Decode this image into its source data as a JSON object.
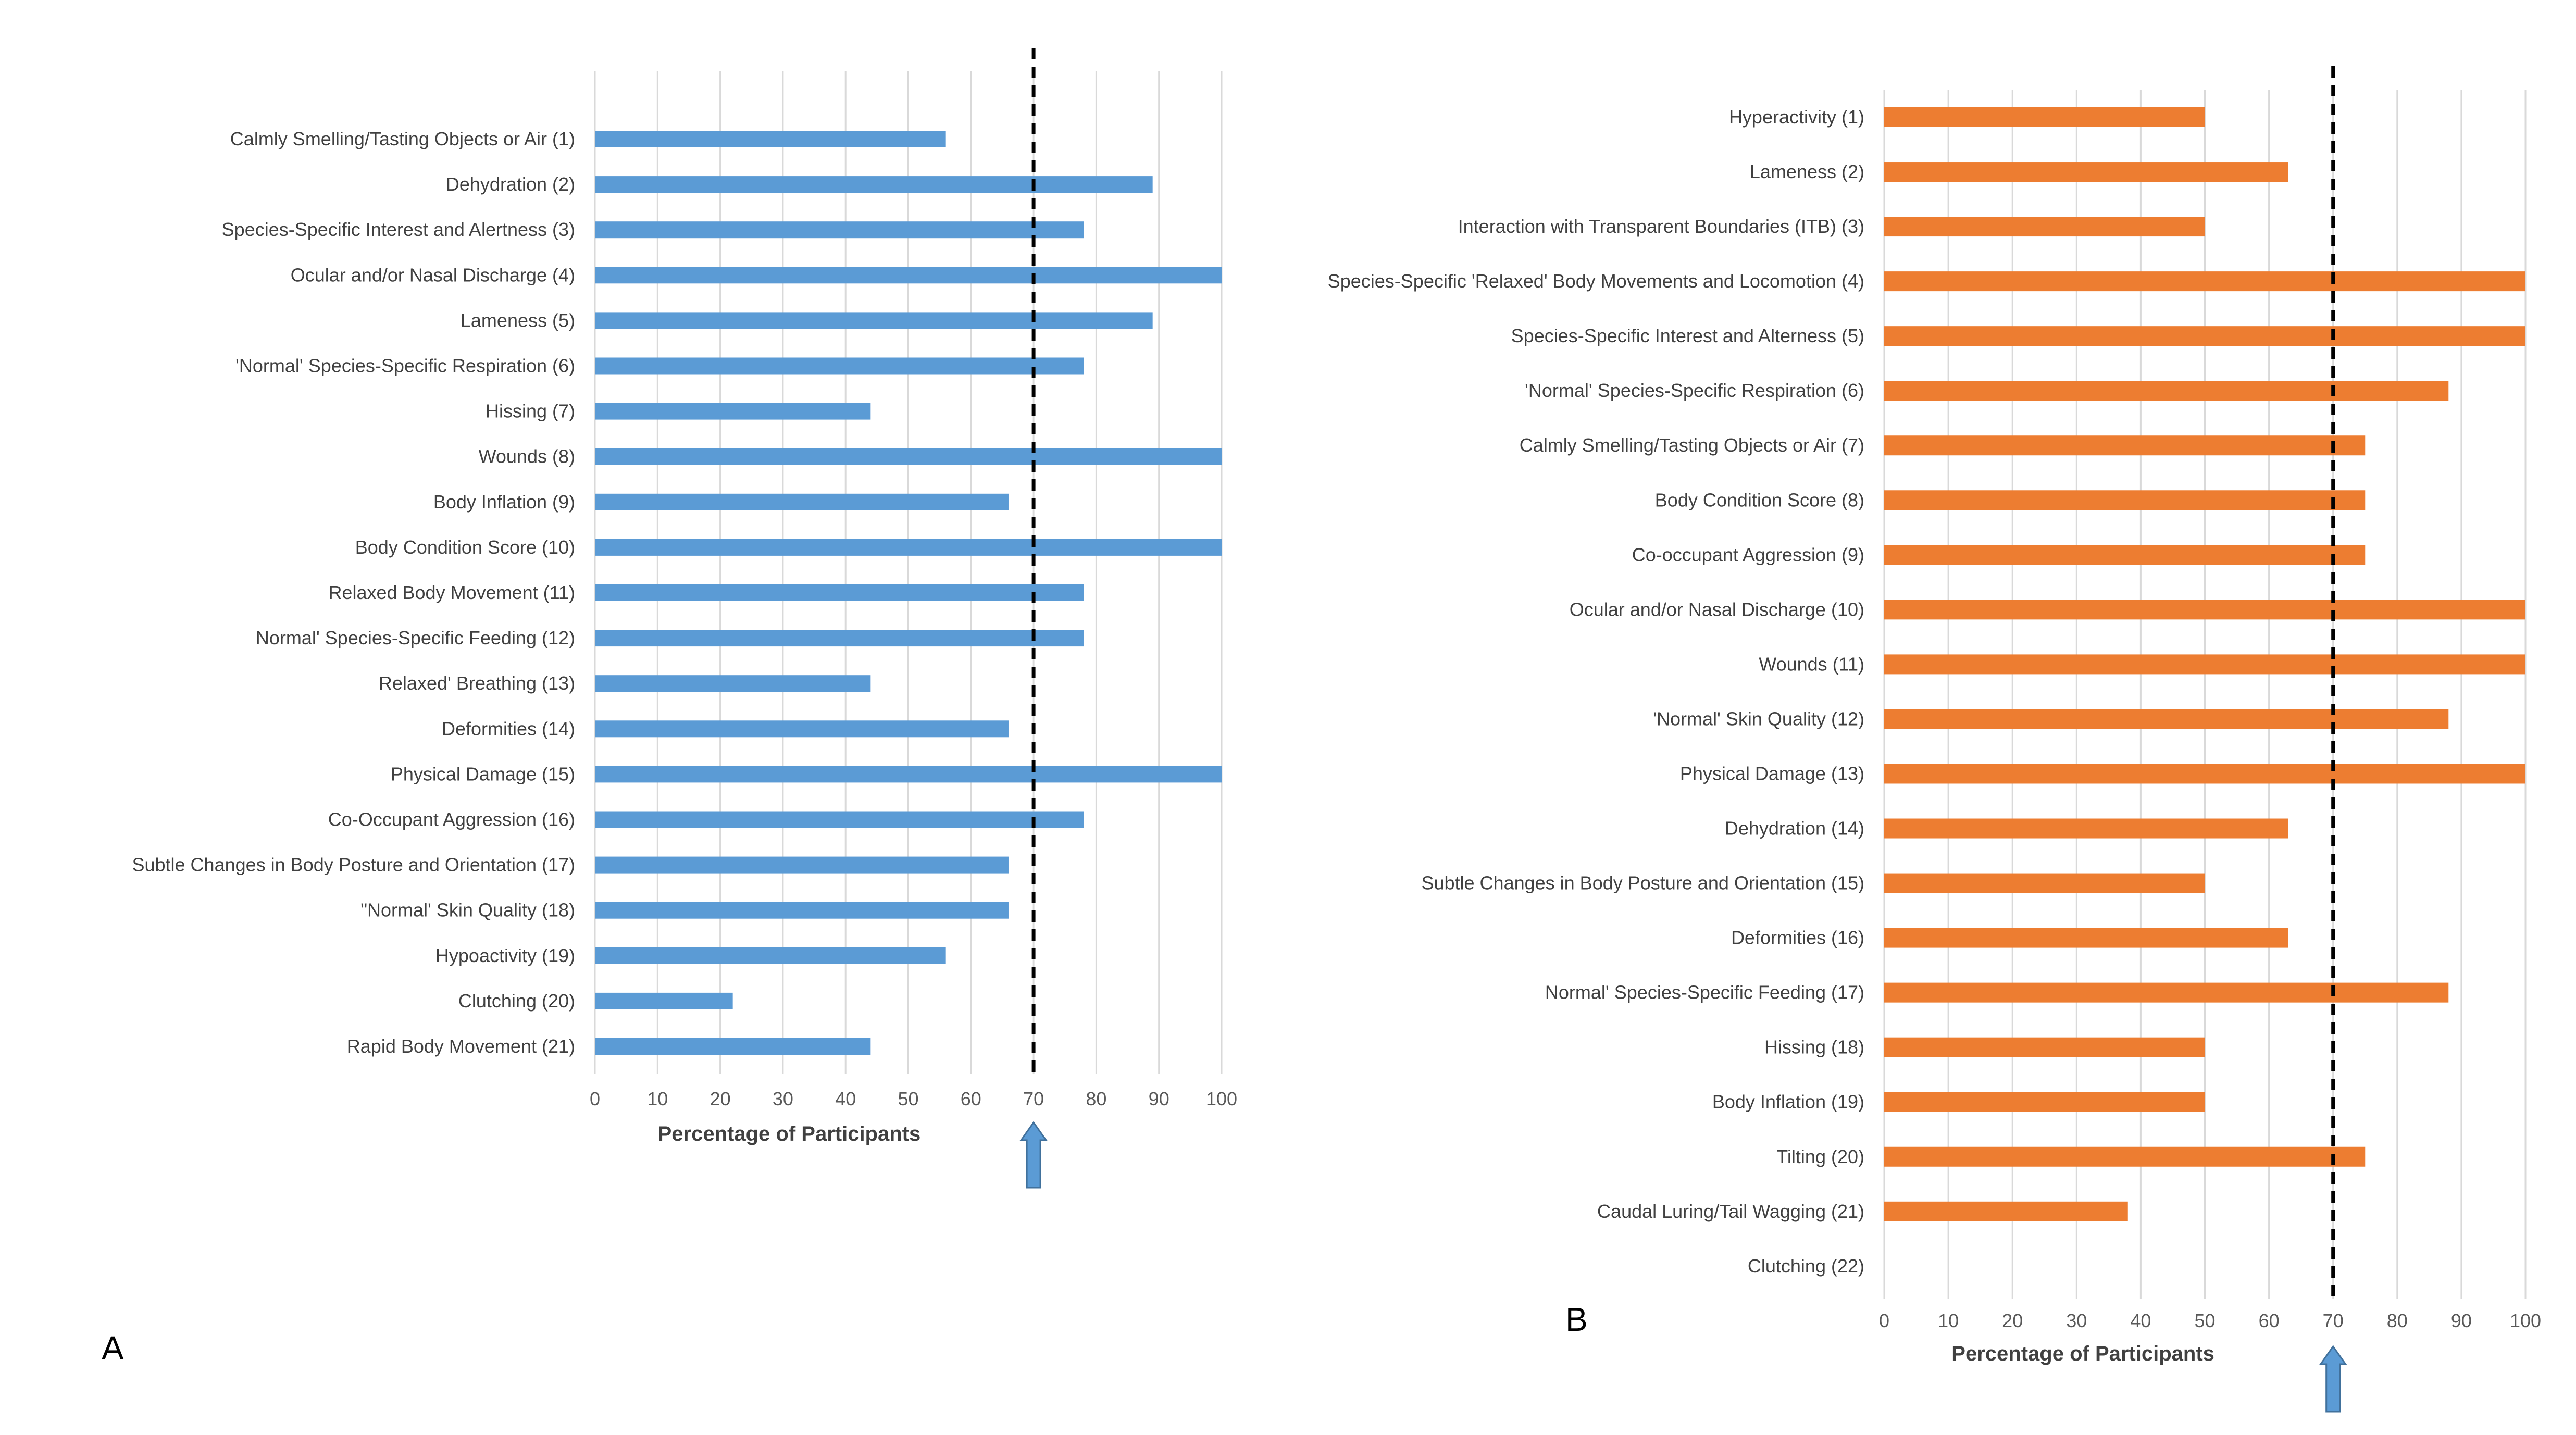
{
  "chart_data": [
    {
      "type": "bar",
      "orientation": "horizontal",
      "panel_label": "A",
      "color": "#5B9BD5",
      "categories": [
        "Calmly Smelling/Tasting Objects or Air (1)",
        "Dehydration (2)",
        "Species-Specific Interest and Alertness (3)",
        "Ocular and/or Nasal Discharge (4)",
        "Lameness (5)",
        "'Normal' Species-Specific Respiration (6)",
        "Hissing (7)",
        "Wounds (8)",
        "Body Inflation (9)",
        "Body Condition Score (10)",
        "Relaxed Body Movement (11)",
        "Normal' Species-Specific Feeding (12)",
        "Relaxed' Breathing (13)",
        "Deformities (14)",
        "Physical Damage (15)",
        "Co-Occupant Aggression (16)",
        "Subtle Changes in Body Posture and Orientation (17)",
        "\"Normal' Skin Quality (18)",
        "Hypoactivity (19)",
        "Clutching (20)",
        "Rapid Body Movement (21)"
      ],
      "values": [
        56,
        89,
        78,
        100,
        89,
        78,
        44,
        100,
        66,
        100,
        78,
        78,
        44,
        66,
        100,
        78,
        66,
        66,
        56,
        22,
        44
      ],
      "xlabel": "Percentage of Participants",
      "xlim": [
        0,
        100
      ],
      "xticks": [
        0,
        10,
        20,
        30,
        40,
        50,
        60,
        70,
        80,
        90,
        100
      ],
      "threshold": 70,
      "threshold_arrow_color": "#5B9BD5",
      "grid": true
    },
    {
      "type": "bar",
      "orientation": "horizontal",
      "panel_label": "B",
      "color": "#ED7D31",
      "categories": [
        "Hyperactivity (1)",
        "Lameness (2)",
        "Interaction with Transparent Boundaries (ITB) (3)",
        "Species-Specific 'Relaxed' Body Movements and Locomotion (4)",
        "Species-Specific Interest and Alterness (5)",
        "'Normal' Species-Specific Respiration (6)",
        "Calmly Smelling/Tasting Objects or Air (7)",
        "Body Condition Score (8)",
        "Co-occupant Aggression (9)",
        "Ocular and/or Nasal Discharge (10)",
        "Wounds (11)",
        "'Normal' Skin Quality (12)",
        "Physical Damage (13)",
        "Dehydration (14)",
        "Subtle Changes in Body Posture and Orientation (15)",
        "Deformities (16)",
        "Normal' Species-Specific Feeding (17)",
        "Hissing (18)",
        "Body Inflation (19)",
        "Tilting (20)",
        "Caudal Luring/Tail Wagging (21)",
        "Clutching (22)"
      ],
      "values": [
        50,
        63,
        50,
        100,
        100,
        88,
        75,
        75,
        75,
        100,
        100,
        88,
        100,
        63,
        50,
        63,
        88,
        50,
        50,
        75,
        38,
        0
      ],
      "xlabel": "Percentage of Participants",
      "xlim": [
        0,
        100
      ],
      "xticks": [
        0,
        10,
        20,
        30,
        40,
        50,
        60,
        70,
        80,
        90,
        100
      ],
      "threshold": 70,
      "threshold_arrow_color": "#5B9BD5",
      "grid": true
    }
  ]
}
